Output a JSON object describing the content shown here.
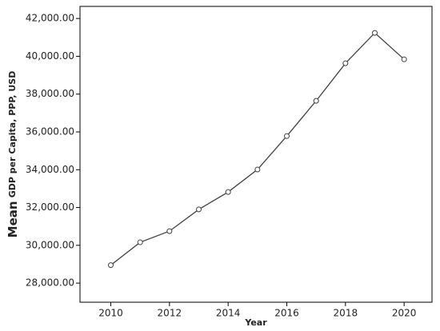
{
  "chart_data": {
    "type": "line",
    "x_label": "Year",
    "y_label": {
      "prefix": "Mean",
      "text": "GDP per Capita, PPP, USD"
    },
    "x": [
      2010,
      2011,
      2012,
      2013,
      2014,
      2015,
      2016,
      2017,
      2018,
      2019,
      2020
    ],
    "series": [
      {
        "color": "#404040",
        "values": [
          28950,
          30160,
          30750,
          31900,
          32820,
          34010,
          35780,
          37645,
          39630,
          41240,
          39840
        ]
      }
    ],
    "xlim": [
      2008.95,
      2020.95
    ],
    "xticks": [
      2010,
      2012,
      2014,
      2016,
      2018,
      2020
    ],
    "ylim": [
      26990,
      42640
    ],
    "yticks": [
      {
        "value": 28000,
        "label": "28,000.00"
      },
      {
        "value": 30000,
        "label": "30,000.00"
      },
      {
        "value": 32000,
        "label": "32,000.00"
      },
      {
        "value": 34000,
        "label": "34,000.00"
      },
      {
        "value": 36000,
        "label": "36,000.00"
      },
      {
        "value": 38000,
        "label": "38,000.00"
      },
      {
        "value": 40000,
        "label": "40,000.00"
      },
      {
        "value": 42000,
        "label": "42,000.00"
      }
    ]
  }
}
